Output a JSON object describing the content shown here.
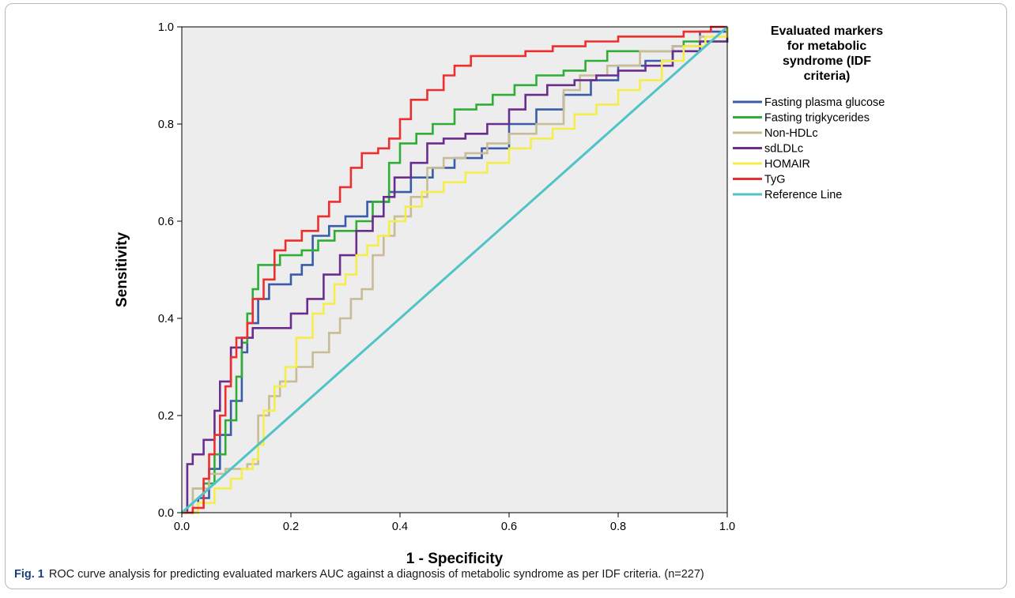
{
  "caption": {
    "label": "Fig. 1",
    "text": "ROC curve analysis for predicting evaluated markers AUC against a diagnosis of metabolic syndrome as per IDF criteria. (n=227)"
  },
  "chart_data": {
    "type": "line",
    "title": "",
    "xlabel": "1 - Specificity",
    "ylabel": "Sensitivity",
    "xlim": [
      0,
      1
    ],
    "ylim": [
      0,
      1
    ],
    "xticks": [
      "0.0",
      "0.2",
      "0.4",
      "0.6",
      "0.8",
      "1.0"
    ],
    "yticks": [
      "0.0",
      "0.2",
      "0.4",
      "0.6",
      "0.8",
      "1.0"
    ],
    "grid": false,
    "background": "#ededed",
    "legend": {
      "title_lines": [
        "Evaluated markers",
        "for metabolic",
        "syndrome (IDF",
        "criteria)"
      ],
      "placement": "right"
    },
    "series": [
      {
        "name": "Fasting plasma glucose",
        "color": "#3a5ba8",
        "points": [
          [
            0,
            0
          ],
          [
            0.03,
            0.03
          ],
          [
            0.05,
            0.09
          ],
          [
            0.07,
            0.16
          ],
          [
            0.09,
            0.23
          ],
          [
            0.11,
            0.33
          ],
          [
            0.12,
            0.39
          ],
          [
            0.14,
            0.44
          ],
          [
            0.16,
            0.47
          ],
          [
            0.2,
            0.49
          ],
          [
            0.22,
            0.51
          ],
          [
            0.24,
            0.57
          ],
          [
            0.27,
            0.59
          ],
          [
            0.3,
            0.61
          ],
          [
            0.34,
            0.64
          ],
          [
            0.38,
            0.66
          ],
          [
            0.42,
            0.69
          ],
          [
            0.46,
            0.71
          ],
          [
            0.5,
            0.73
          ],
          [
            0.55,
            0.75
          ],
          [
            0.6,
            0.8
          ],
          [
            0.65,
            0.83
          ],
          [
            0.7,
            0.86
          ],
          [
            0.75,
            0.89
          ],
          [
            0.8,
            0.92
          ],
          [
            0.85,
            0.93
          ],
          [
            0.9,
            0.96
          ],
          [
            0.95,
            0.99
          ],
          [
            1,
            1
          ]
        ]
      },
      {
        "name": "Fasting trigkycerides",
        "color": "#2fad36",
        "points": [
          [
            0,
            0
          ],
          [
            0.02,
            0.05
          ],
          [
            0.04,
            0.06
          ],
          [
            0.06,
            0.12
          ],
          [
            0.08,
            0.19
          ],
          [
            0.1,
            0.28
          ],
          [
            0.11,
            0.35
          ],
          [
            0.12,
            0.41
          ],
          [
            0.13,
            0.46
          ],
          [
            0.14,
            0.51
          ],
          [
            0.18,
            0.53
          ],
          [
            0.22,
            0.54
          ],
          [
            0.25,
            0.56
          ],
          [
            0.28,
            0.58
          ],
          [
            0.32,
            0.6
          ],
          [
            0.35,
            0.64
          ],
          [
            0.38,
            0.72
          ],
          [
            0.4,
            0.76
          ],
          [
            0.43,
            0.78
          ],
          [
            0.46,
            0.8
          ],
          [
            0.5,
            0.83
          ],
          [
            0.54,
            0.84
          ],
          [
            0.57,
            0.86
          ],
          [
            0.61,
            0.88
          ],
          [
            0.65,
            0.9
          ],
          [
            0.7,
            0.91
          ],
          [
            0.74,
            0.93
          ],
          [
            0.78,
            0.95
          ],
          [
            0.85,
            0.95
          ],
          [
            0.92,
            0.97
          ],
          [
            0.97,
            0.97
          ],
          [
            1,
            1
          ]
        ]
      },
      {
        "name": "Non-HDLc",
        "color": "#c8bc96",
        "points": [
          [
            0,
            0
          ],
          [
            0.02,
            0.05
          ],
          [
            0.05,
            0.08
          ],
          [
            0.08,
            0.09
          ],
          [
            0.12,
            0.1
          ],
          [
            0.14,
            0.11
          ],
          [
            0.14,
            0.2
          ],
          [
            0.16,
            0.24
          ],
          [
            0.18,
            0.27
          ],
          [
            0.21,
            0.3
          ],
          [
            0.24,
            0.33
          ],
          [
            0.27,
            0.37
          ],
          [
            0.29,
            0.4
          ],
          [
            0.31,
            0.44
          ],
          [
            0.33,
            0.46
          ],
          [
            0.35,
            0.53
          ],
          [
            0.37,
            0.57
          ],
          [
            0.39,
            0.61
          ],
          [
            0.42,
            0.65
          ],
          [
            0.45,
            0.71
          ],
          [
            0.48,
            0.73
          ],
          [
            0.52,
            0.74
          ],
          [
            0.56,
            0.76
          ],
          [
            0.6,
            0.78
          ],
          [
            0.65,
            0.8
          ],
          [
            0.7,
            0.87
          ],
          [
            0.73,
            0.9
          ],
          [
            0.78,
            0.92
          ],
          [
            0.84,
            0.95
          ],
          [
            0.9,
            0.96
          ],
          [
            0.95,
            0.98
          ],
          [
            1,
            1
          ]
        ]
      },
      {
        "name": "sdLDLc",
        "color": "#6a2d8e",
        "points": [
          [
            0,
            0
          ],
          [
            0.01,
            0.1
          ],
          [
            0.02,
            0.12
          ],
          [
            0.04,
            0.15
          ],
          [
            0.06,
            0.21
          ],
          [
            0.07,
            0.27
          ],
          [
            0.09,
            0.34
          ],
          [
            0.11,
            0.36
          ],
          [
            0.13,
            0.38
          ],
          [
            0.16,
            0.38
          ],
          [
            0.2,
            0.41
          ],
          [
            0.23,
            0.44
          ],
          [
            0.26,
            0.49
          ],
          [
            0.29,
            0.53
          ],
          [
            0.32,
            0.58
          ],
          [
            0.35,
            0.61
          ],
          [
            0.37,
            0.65
          ],
          [
            0.39,
            0.69
          ],
          [
            0.42,
            0.72
          ],
          [
            0.45,
            0.76
          ],
          [
            0.48,
            0.77
          ],
          [
            0.52,
            0.78
          ],
          [
            0.56,
            0.8
          ],
          [
            0.6,
            0.83
          ],
          [
            0.63,
            0.86
          ],
          [
            0.67,
            0.88
          ],
          [
            0.72,
            0.89
          ],
          [
            0.76,
            0.9
          ],
          [
            0.8,
            0.91
          ],
          [
            0.85,
            0.92
          ],
          [
            0.9,
            0.95
          ],
          [
            0.95,
            0.97
          ],
          [
            1,
            1
          ]
        ]
      },
      {
        "name": "HOMAIR",
        "color": "#f5ee4a",
        "points": [
          [
            0,
            0
          ],
          [
            0.03,
            0.02
          ],
          [
            0.06,
            0.05
          ],
          [
            0.09,
            0.07
          ],
          [
            0.11,
            0.09
          ],
          [
            0.13,
            0.11
          ],
          [
            0.14,
            0.14
          ],
          [
            0.15,
            0.21
          ],
          [
            0.17,
            0.26
          ],
          [
            0.19,
            0.3
          ],
          [
            0.21,
            0.36
          ],
          [
            0.24,
            0.41
          ],
          [
            0.26,
            0.43
          ],
          [
            0.28,
            0.47
          ],
          [
            0.3,
            0.49
          ],
          [
            0.32,
            0.53
          ],
          [
            0.34,
            0.55
          ],
          [
            0.36,
            0.57
          ],
          [
            0.38,
            0.6
          ],
          [
            0.41,
            0.63
          ],
          [
            0.44,
            0.66
          ],
          [
            0.48,
            0.68
          ],
          [
            0.52,
            0.7
          ],
          [
            0.56,
            0.72
          ],
          [
            0.6,
            0.75
          ],
          [
            0.64,
            0.77
          ],
          [
            0.68,
            0.79
          ],
          [
            0.72,
            0.82
          ],
          [
            0.76,
            0.84
          ],
          [
            0.8,
            0.87
          ],
          [
            0.84,
            0.89
          ],
          [
            0.88,
            0.93
          ],
          [
            0.92,
            0.96
          ],
          [
            0.96,
            0.98
          ],
          [
            1,
            1
          ]
        ]
      },
      {
        "name": "TyG",
        "color": "#ee2e2e",
        "points": [
          [
            0,
            0
          ],
          [
            0.02,
            0.01
          ],
          [
            0.04,
            0.07
          ],
          [
            0.05,
            0.12
          ],
          [
            0.06,
            0.16
          ],
          [
            0.07,
            0.2
          ],
          [
            0.08,
            0.26
          ],
          [
            0.09,
            0.32
          ],
          [
            0.1,
            0.36
          ],
          [
            0.12,
            0.39
          ],
          [
            0.13,
            0.44
          ],
          [
            0.15,
            0.48
          ],
          [
            0.17,
            0.54
          ],
          [
            0.19,
            0.56
          ],
          [
            0.22,
            0.58
          ],
          [
            0.25,
            0.61
          ],
          [
            0.27,
            0.64
          ],
          [
            0.29,
            0.67
          ],
          [
            0.31,
            0.71
          ],
          [
            0.33,
            0.74
          ],
          [
            0.36,
            0.75
          ],
          [
            0.38,
            0.77
          ],
          [
            0.4,
            0.81
          ],
          [
            0.42,
            0.85
          ],
          [
            0.45,
            0.87
          ],
          [
            0.48,
            0.9
          ],
          [
            0.5,
            0.92
          ],
          [
            0.53,
            0.94
          ],
          [
            0.58,
            0.94
          ],
          [
            0.63,
            0.95
          ],
          [
            0.68,
            0.96
          ],
          [
            0.74,
            0.97
          ],
          [
            0.8,
            0.98
          ],
          [
            0.86,
            0.98
          ],
          [
            0.92,
            0.99
          ],
          [
            0.97,
            1
          ],
          [
            1,
            1
          ]
        ]
      },
      {
        "name": "Reference Line",
        "color": "#4fc3c6",
        "points": [
          [
            0,
            0
          ],
          [
            1,
            1
          ]
        ]
      }
    ]
  }
}
